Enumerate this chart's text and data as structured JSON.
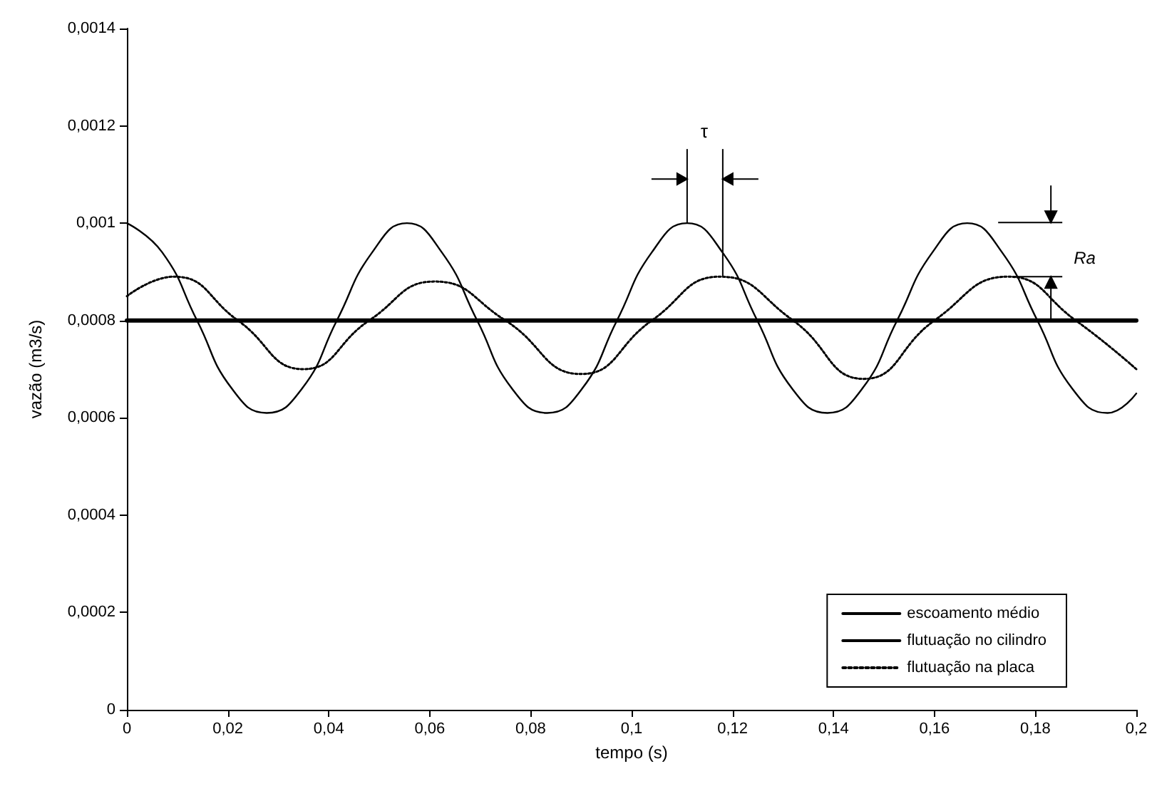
{
  "chart_data": {
    "type": "line",
    "xlabel": "tempo (s)",
    "ylabel": "vazão (m3/s)",
    "xlim": [
      0,
      0.2
    ],
    "xticks": [
      0,
      {
        "value": 0.02,
        "label": "0,02"
      },
      {
        "value": 0.04,
        "label": "0,04"
      },
      {
        "value": 0.06,
        "label": "0,06"
      },
      {
        "value": 0.08,
        "label": "0,08"
      },
      {
        "value": 0.1,
        "label": "0,1"
      },
      {
        "value": 0.12,
        "label": "0,12"
      },
      {
        "value": 0.14,
        "label": "0,14"
      },
      {
        "value": 0.16,
        "label": "0,16"
      },
      {
        "value": 0.18,
        "label": "0,18"
      },
      {
        "value": 0.2,
        "label": "0,2"
      }
    ],
    "ylim": [
      0,
      0.0014
    ],
    "yticks": [
      0,
      {
        "value": 0.0002,
        "label": "0,0002"
      },
      {
        "value": 0.0004,
        "label": "0,0004"
      },
      {
        "value": 0.0006,
        "label": "0,0006"
      },
      {
        "value": 0.0008,
        "label": "0,0008"
      },
      {
        "value": 0.001,
        "label": "0,001"
      },
      {
        "value": 0.0012,
        "label": "0,0012"
      },
      {
        "value": 0.0014,
        "label": "0,0014"
      }
    ],
    "grid": false,
    "legend": "bottom right",
    "marker": "none",
    "series": [
      {
        "name": "escoamento médio",
        "color": "#000000",
        "line_style": "solid",
        "x": [
          0,
          0.2
        ],
        "values": [
          0.0008,
          0.0008
        ]
      },
      {
        "name": "flutuação no cilindro",
        "color": "#000000",
        "line_style": "solid",
        "x": [
          0,
          0.007,
          0.0139,
          0.0208,
          0.0277,
          0.0347,
          0.0416,
          0.0486,
          0.0555,
          0.0624,
          0.0694,
          0.0763,
          0.0833,
          0.0902,
          0.0971,
          0.104,
          0.111,
          0.118,
          0.1249,
          0.1318,
          0.1388,
          0.1457,
          0.1526,
          0.1596,
          0.1665,
          0.1734,
          0.1804,
          0.1873,
          0.1943,
          0.2
        ],
        "values": [
          0.001,
          0.00094,
          0.0008,
          0.00066,
          0.00061,
          0.00066,
          0.0008,
          0.00094,
          0.001,
          0.00094,
          0.0008,
          0.00066,
          0.00061,
          0.00066,
          0.0008,
          0.00094,
          0.001,
          0.00094,
          0.0008,
          0.00066,
          0.00061,
          0.00066,
          0.0008,
          0.00094,
          0.001,
          0.00094,
          0.0008,
          0.00066,
          0.00061,
          0.00065
        ]
      },
      {
        "name": "flutuação na placa",
        "color": "#000000",
        "line_style": "dotted",
        "x": [
          0,
          0.0093,
          0.022,
          0.035,
          0.048,
          0.061,
          0.075,
          0.09,
          0.104,
          0.1175,
          0.132,
          0.146,
          0.16,
          0.1746,
          0.188,
          0.2
        ],
        "values": [
          0.00085,
          0.00089,
          0.0008,
          0.0007,
          0.0008,
          0.00088,
          0.0008,
          0.00069,
          0.0008,
          0.00089,
          0.0008,
          0.00068,
          0.0008,
          0.00089,
          0.0008,
          0.0007
        ]
      }
    ],
    "annotations": [
      {
        "text": "τ",
        "x": 0.111,
        "y": 0.001
      },
      {
        "text": "Ra",
        "x": 0.1746,
        "y": 0.00089
      }
    ]
  }
}
